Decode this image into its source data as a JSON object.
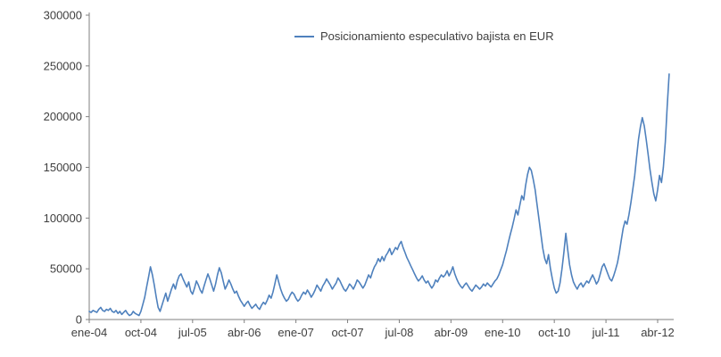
{
  "colors": {
    "line": "#4F81BD",
    "axis": "#7f7f7f",
    "text": "#3f3f3f",
    "background": "#FFFFFF"
  },
  "chart_data": {
    "type": "line",
    "title": "",
    "grid": false,
    "legend_position": "top-center",
    "x_tick_labels": [
      "ene-04",
      "oct-04",
      "jul-05",
      "abr-06",
      "ene-07",
      "oct-07",
      "jul-08",
      "abr-09",
      "ene-10",
      "oct-10",
      "jul-11",
      "abr-12"
    ],
    "x_tick_interval_months": 9,
    "y_axis": {
      "min": 0,
      "max": 300000,
      "tick_step": 50000,
      "tick_labels": [
        "0",
        "50000",
        "100000",
        "150000",
        "200000",
        "250000",
        "300000"
      ]
    },
    "series": [
      {
        "name": "Posicionamiento especulativo bajista en EUR",
        "color": "#4F81BD",
        "points_per_month": 3,
        "start_label": "ene-04",
        "values": [
          8000,
          7000,
          9000,
          8000,
          7000,
          10000,
          12000,
          9000,
          8000,
          10000,
          9000,
          11000,
          8000,
          7000,
          9000,
          6000,
          8000,
          5000,
          7000,
          9000,
          6000,
          4000,
          5000,
          8000,
          6000,
          5000,
          4000,
          8000,
          15000,
          22000,
          32000,
          42000,
          52000,
          44000,
          34000,
          22000,
          12000,
          8000,
          14000,
          20000,
          26000,
          18000,
          24000,
          30000,
          35000,
          30000,
          38000,
          43000,
          45000,
          40000,
          36000,
          32000,
          37000,
          28000,
          25000,
          31000,
          38000,
          34000,
          29000,
          26000,
          33000,
          39000,
          45000,
          40000,
          34000,
          28000,
          35000,
          44000,
          51000,
          46000,
          38000,
          30000,
          34000,
          39000,
          35000,
          30000,
          26000,
          28000,
          23000,
          19000,
          16000,
          13000,
          16000,
          18000,
          14000,
          11000,
          13000,
          15000,
          12000,
          10000,
          14000,
          17000,
          15000,
          19000,
          24000,
          21000,
          27000,
          35000,
          44000,
          37000,
          30000,
          25000,
          21000,
          18000,
          20000,
          24000,
          27000,
          25000,
          21000,
          18000,
          20000,
          24000,
          27000,
          25000,
          29000,
          26000,
          22000,
          25000,
          29000,
          34000,
          31000,
          28000,
          33000,
          36000,
          40000,
          37000,
          34000,
          30000,
          33000,
          36000,
          41000,
          38000,
          34000,
          30000,
          28000,
          31000,
          35000,
          33000,
          30000,
          34000,
          39000,
          37000,
          34000,
          31000,
          34000,
          39000,
          44000,
          41000,
          47000,
          52000,
          55000,
          60000,
          57000,
          62000,
          58000,
          63000,
          66000,
          70000,
          64000,
          67000,
          71000,
          69000,
          74000,
          77000,
          71000,
          66000,
          61000,
          57000,
          53000,
          49000,
          45000,
          41000,
          38000,
          40000,
          43000,
          39000,
          36000,
          38000,
          34000,
          31000,
          34000,
          39000,
          37000,
          41000,
          44000,
          42000,
          44000,
          48000,
          43000,
          47000,
          52000,
          45000,
          40000,
          36000,
          33000,
          31000,
          34000,
          36000,
          33000,
          30000,
          28000,
          31000,
          34000,
          32000,
          30000,
          32000,
          35000,
          33000,
          36000,
          34000,
          32000,
          35000,
          38000,
          40000,
          44000,
          49000,
          54000,
          61000,
          68000,
          76000,
          84000,
          91000,
          99000,
          108000,
          103000,
          113000,
          122000,
          118000,
          132000,
          143000,
          150000,
          147000,
          138000,
          128000,
          113000,
          99000,
          84000,
          70000,
          60000,
          55000,
          64000,
          50000,
          40000,
          31000,
          26000,
          28000,
          36000,
          50000,
          66000,
          85000,
          69000,
          54000,
          44000,
          37000,
          33000,
          30000,
          34000,
          36000,
          32000,
          35000,
          38000,
          36000,
          40000,
          44000,
          40000,
          35000,
          38000,
          45000,
          52000,
          55000,
          50000,
          45000,
          40000,
          38000,
          43000,
          49000,
          56000,
          66000,
          78000,
          90000,
          97000,
          94000,
          103000,
          115000,
          128000,
          142000,
          160000,
          178000,
          190000,
          199000,
          191000,
          178000,
          163000,
          148000,
          135000,
          124000,
          117000,
          128000,
          142000,
          135000,
          150000,
          175000,
          210000,
          242000
        ]
      }
    ]
  }
}
